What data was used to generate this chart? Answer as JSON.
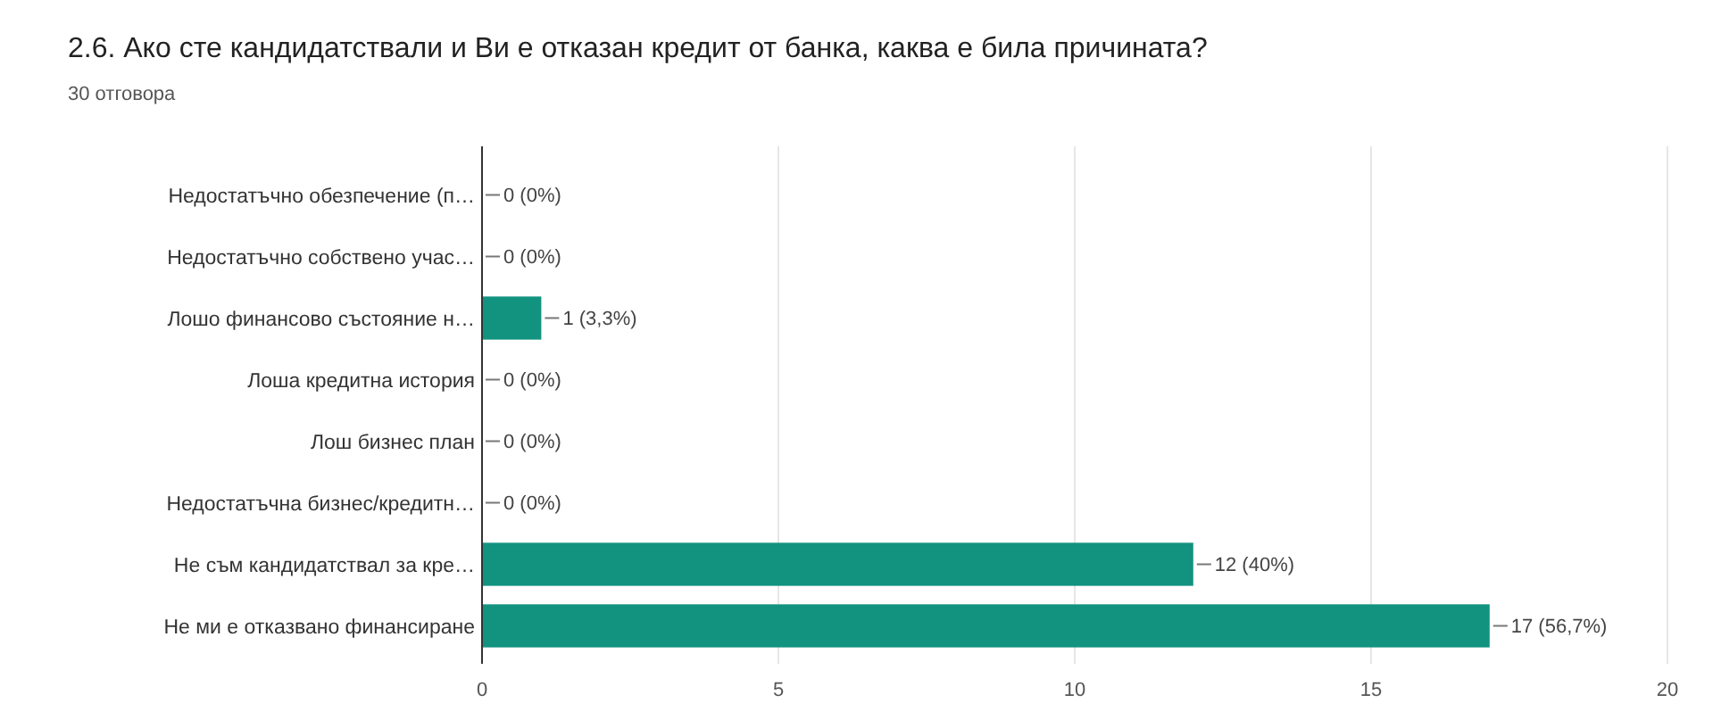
{
  "chart_data": {
    "type": "bar",
    "orientation": "horizontal",
    "title": "2.6. Ако сте кандидатствали и Ви е отказан кредит от банка, каква е била причината?",
    "subtitle": "30 отговора",
    "categories": [
      "Недостатъчно обезпечение (п…",
      "Недостатъчно собствено учас…",
      "Лошо финансово състояние н…",
      "Лоша кредитна история",
      "Лош бизнес план",
      "Недостатъчна бизнес/кредитн…",
      "Не съм кандидатствал за кре…",
      "Не ми е отказвано финансиране"
    ],
    "values": [
      0,
      0,
      1,
      0,
      0,
      0,
      12,
      17
    ],
    "value_labels": [
      "0 (0%)",
      "0 (0%)",
      "1 (3,3%)",
      "0 (0%)",
      "0 (0%)",
      "0 (0%)",
      "12 (40%)",
      "17 (56,7%)"
    ],
    "color": "#11937f",
    "xlim": [
      0,
      20
    ],
    "xticks": [
      0,
      5,
      10,
      15,
      20
    ],
    "grid": "x"
  }
}
